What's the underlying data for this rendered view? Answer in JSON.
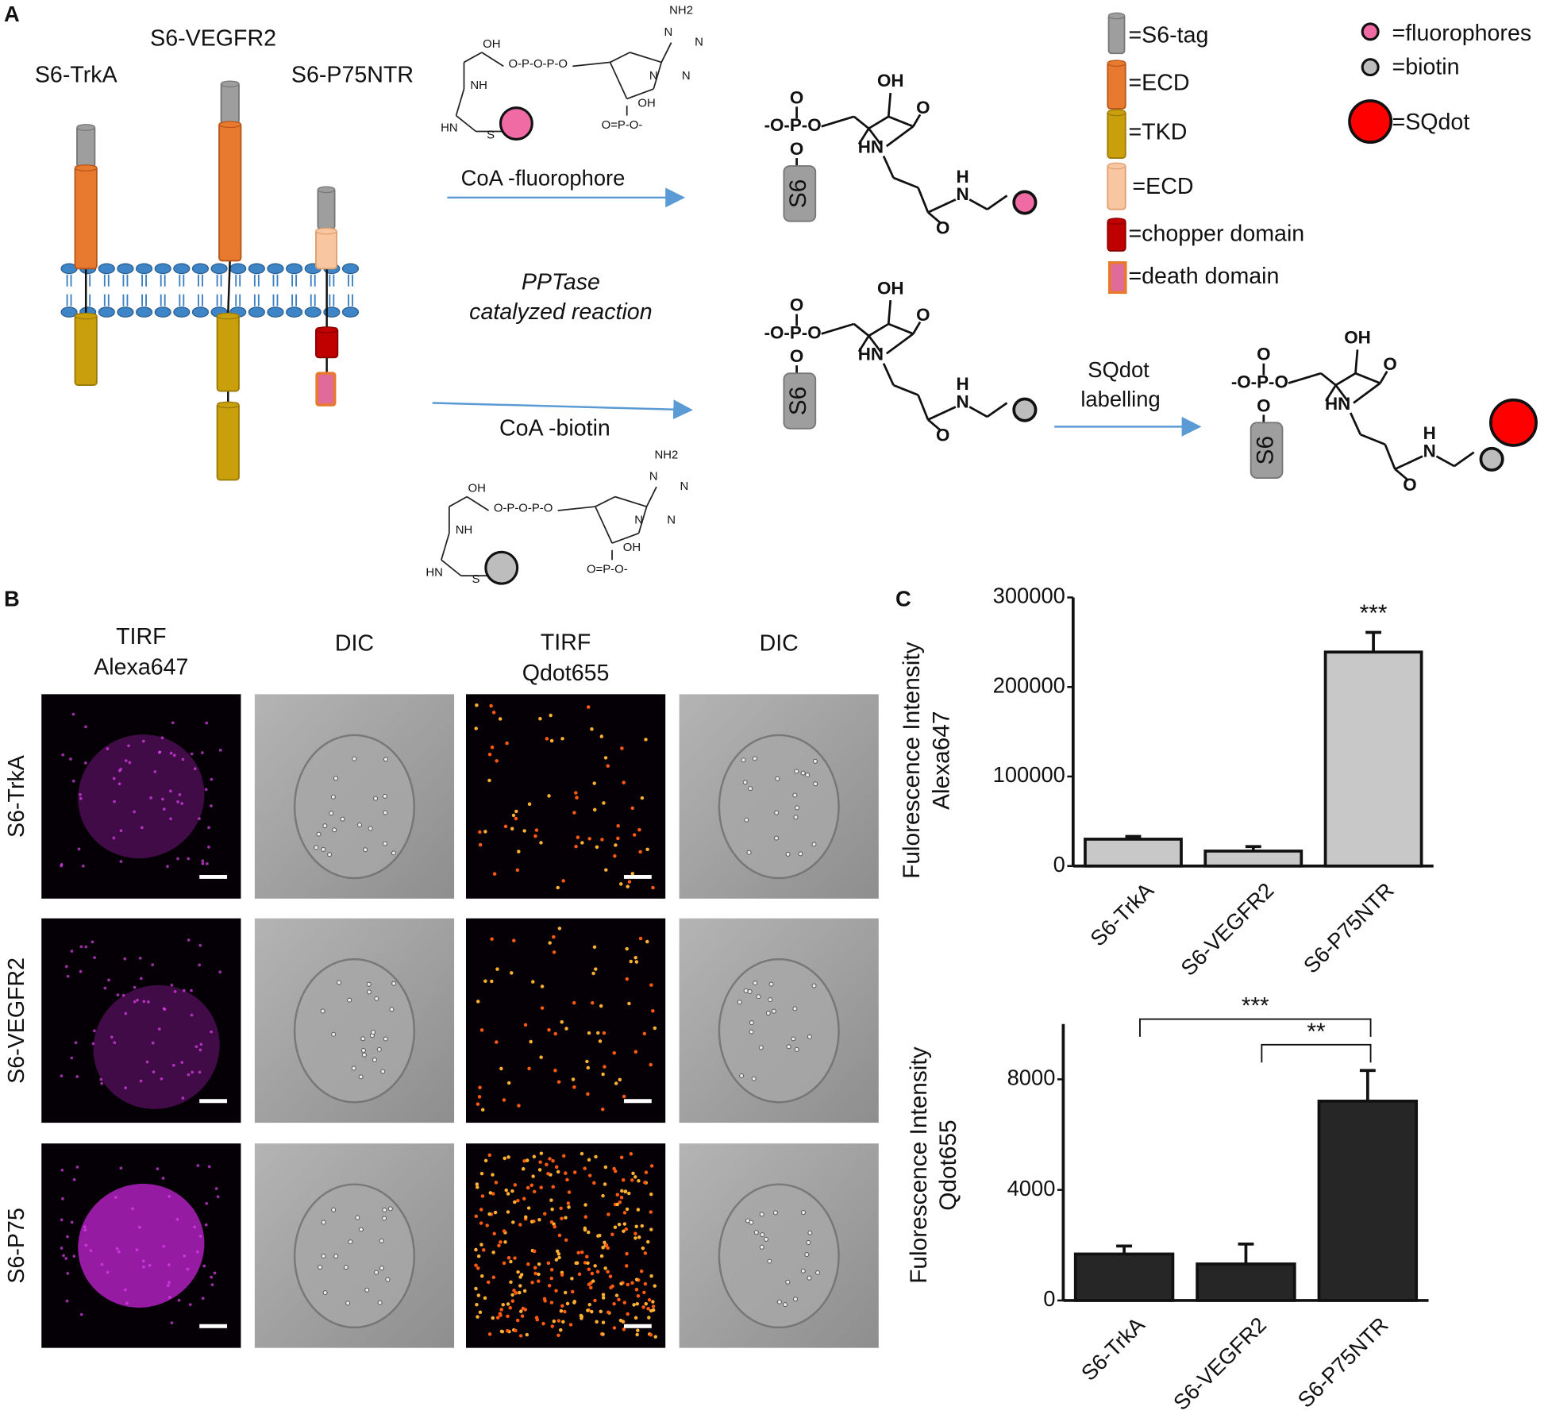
{
  "panel_a": {
    "label": "A",
    "receptors": [
      "S6-TrkA",
      "S6-VEGFR2",
      "S6-P75NTR"
    ],
    "legend": [
      "=S6-tag",
      "=ECD",
      "=TKD",
      "=ECD",
      "=chopper domain",
      "=death domain"
    ],
    "legend_right": [
      "=fluorophores",
      "=biotin",
      "=SQdot"
    ],
    "reactions": {
      "fluorophore": "CoA -fluorophore",
      "enzyme": [
        "PPTase",
        "catalyzed reaction"
      ],
      "biotin": "CoA -biotin",
      "sqdot": [
        "SQdot",
        "labelling"
      ]
    },
    "coa": [
      [
        "OH",
        "O-P-O-P-O",
        "NH",
        "HN",
        "S",
        "NH2",
        "N",
        "N",
        "N",
        "N",
        "OH",
        "O=P-O-"
      ],
      [
        "OH",
        "O-P-O-P-O",
        "NH",
        "HN",
        "S",
        "NH2",
        "N",
        "N",
        "N",
        "N",
        "OH",
        "O=P-O-"
      ]
    ],
    "products": [
      [
        "O",
        "-O-P-O",
        "O",
        "S6",
        "OH",
        "O",
        "HN",
        "H",
        "N",
        "O"
      ],
      [
        "O",
        "-O-P-O",
        "O",
        "S6",
        "OH",
        "O",
        "HN",
        "H",
        "N",
        "O"
      ],
      [
        "O",
        "-O-P-O",
        "O",
        "S6",
        "OH",
        "O",
        "HN",
        "H",
        "N",
        "O"
      ]
    ]
  },
  "panel_b": {
    "label": "B",
    "columns": [
      [
        "TIRF",
        "Alexa647"
      ],
      [
        "DIC"
      ],
      [
        "TIRF",
        "Qdot655"
      ],
      [
        "DIC"
      ]
    ],
    "rows": [
      "S6-TrkA",
      "S6-VEGFR2",
      "S6-P75"
    ]
  },
  "panel_c": {
    "label": "C"
  },
  "chart_data": [
    {
      "type": "bar",
      "ylabel": [
        "Fulorescence Intensity",
        "Alexa647"
      ],
      "categories": [
        "S6-TrkA",
        "S6-VEGFR2",
        "S6-P75NTR"
      ],
      "series": [
        {
          "color": "#c8c8c8",
          "values": [
            30000,
            16700,
            239000
          ],
          "errors": [
            3000,
            5000,
            22000
          ]
        }
      ],
      "ylim": [
        0,
        300000
      ],
      "yticks": [
        0,
        100000,
        200000,
        300000
      ],
      "annotations": [
        {
          "text": "***",
          "bar": 2
        }
      ]
    },
    {
      "type": "bar",
      "ylabel": [
        "Fulorescence Intensity",
        "Qdot655"
      ],
      "categories": [
        "S6-TrkA",
        "S6-VEGFR2",
        "S6-P75NTR"
      ],
      "series": [
        {
          "color": "#262626",
          "values": [
            1680,
            1320,
            7210
          ],
          "errors": [
            290,
            720,
            1110
          ]
        }
      ],
      "ylim": [
        0,
        10000
      ],
      "yticks": [
        0,
        4000,
        8000
      ],
      "annotations": [
        {
          "text": "***",
          "from": 0,
          "to": 2
        },
        {
          "text": "**",
          "from": 1,
          "to": 2
        }
      ]
    }
  ]
}
